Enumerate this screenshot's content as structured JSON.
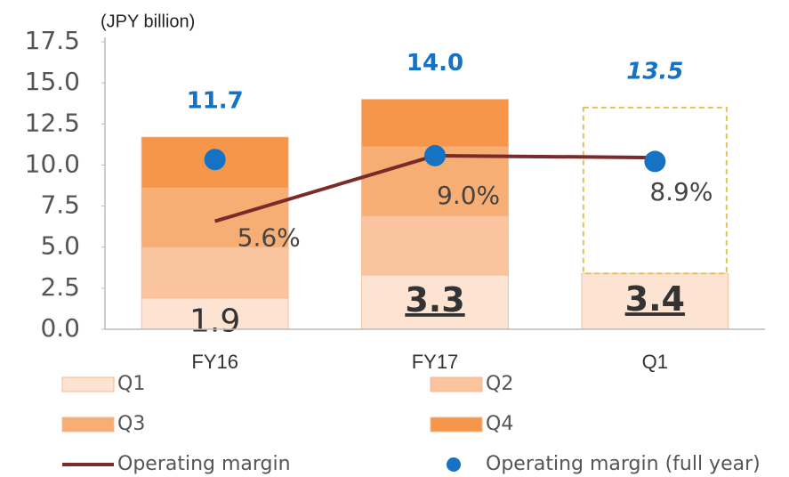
{
  "chart_data": {
    "type": "bar",
    "stacked": true,
    "unit_label": "(JPY billion)",
    "categories": [
      "FY16",
      "FY17",
      "Q1"
    ],
    "ylim": [
      0,
      17.5
    ],
    "yticks": [
      {
        "value": 0,
        "label": "0.0"
      },
      2.5,
      {
        "value": 5,
        "label": "5.0"
      },
      7.5,
      {
        "value": 10,
        "label": "10.0"
      },
      12.5,
      {
        "value": 15,
        "label": "15.0"
      },
      17.5
    ],
    "y2lim": [
      0,
      14.9
    ],
    "series": [
      {
        "name": "Q1",
        "color": "#fde3d2",
        "values": [
          1.9,
          3.3,
          3.4
        ]
      },
      {
        "name": "Q2",
        "color": "#f9c49e",
        "values": [
          3.1,
          3.6,
          null
        ]
      },
      {
        "name": "Q3",
        "color": "#f7ae74",
        "values": [
          3.6,
          4.2,
          null
        ]
      },
      {
        "name": "Q4",
        "color": "#f5964a",
        "values": [
          3.1,
          2.9,
          null
        ]
      },
      {
        "name": "Operating margin",
        "type": "line",
        "axis": "y2",
        "color": "#7b2a2a",
        "values": [
          5.6,
          9.0,
          8.9
        ],
        "value_labels": [
          "5.6%",
          "9.0%",
          "8.9%"
        ]
      },
      {
        "name": "Operating margin (full year)",
        "type": "scatter",
        "axis": "y2",
        "color": "#1673c4",
        "values": [
          8.8,
          9.0,
          8.7
        ]
      }
    ],
    "totals": {
      "values": [
        11.7,
        14.0,
        13.5
      ],
      "value_labels": [
        "11.7",
        "14.0",
        "13.5"
      ]
    }
  }
}
